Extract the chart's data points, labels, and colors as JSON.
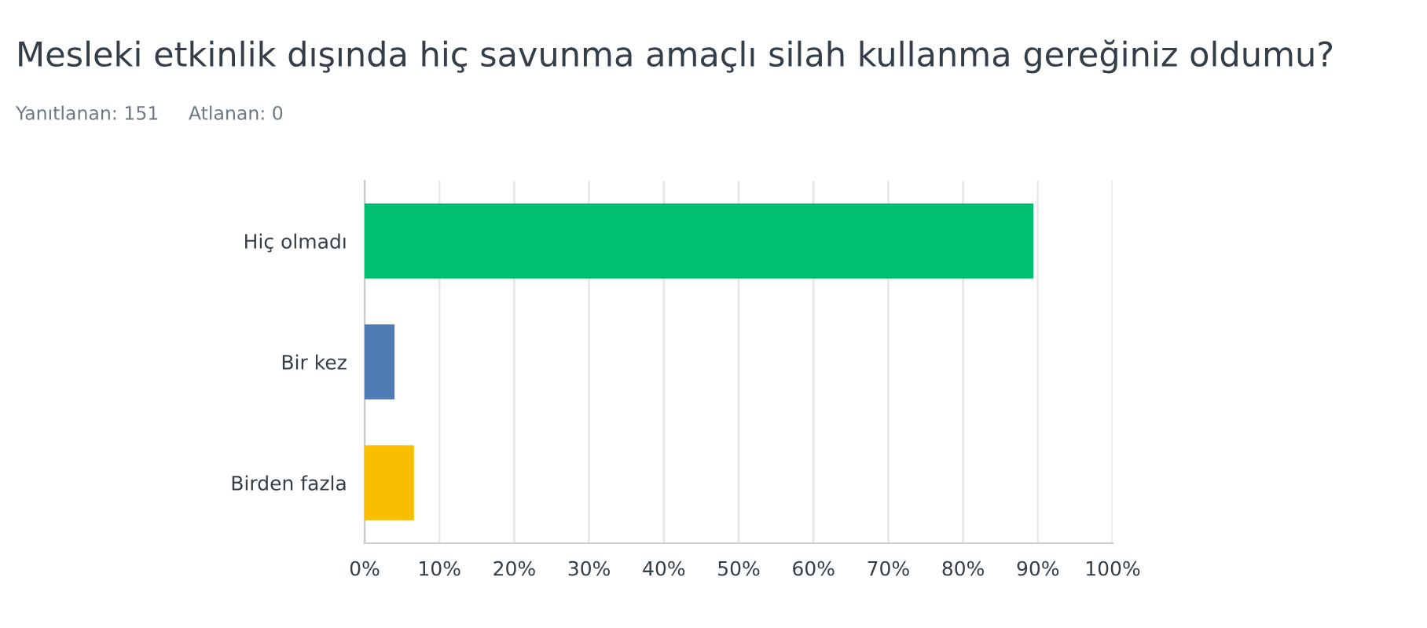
{
  "chart_data": {
    "type": "bar",
    "orientation": "horizontal",
    "title": "Mesleki etkinlik dışında hiç savunma amaçlı silah kullanma gereğiniz oldumu?",
    "subtitle": "Yanıtlanan: 151     Atlanan: 0",
    "categories": [
      "Hiç olmadı",
      "Bir kez",
      "Birden fazla"
    ],
    "values": [
      89.4,
      4.0,
      6.6
    ],
    "colors": [
      "#00bf6f",
      "#507cb6",
      "#f9be00"
    ],
    "xlim": [
      0,
      100
    ],
    "xticks": [
      {
        "value": 0,
        "label": "0%"
      },
      {
        "value": 10,
        "label": "10%"
      },
      {
        "value": 20,
        "label": "20%"
      },
      {
        "value": 30,
        "label": "30%"
      },
      {
        "value": 40,
        "label": "40%"
      },
      {
        "value": 50,
        "label": "50%"
      },
      {
        "value": 60,
        "label": "60%"
      },
      {
        "value": 70,
        "label": "70%"
      },
      {
        "value": 80,
        "label": "80%"
      },
      {
        "value": 90,
        "label": "90%"
      },
      {
        "value": 100,
        "label": "100%"
      }
    ],
    "grid": "x"
  }
}
